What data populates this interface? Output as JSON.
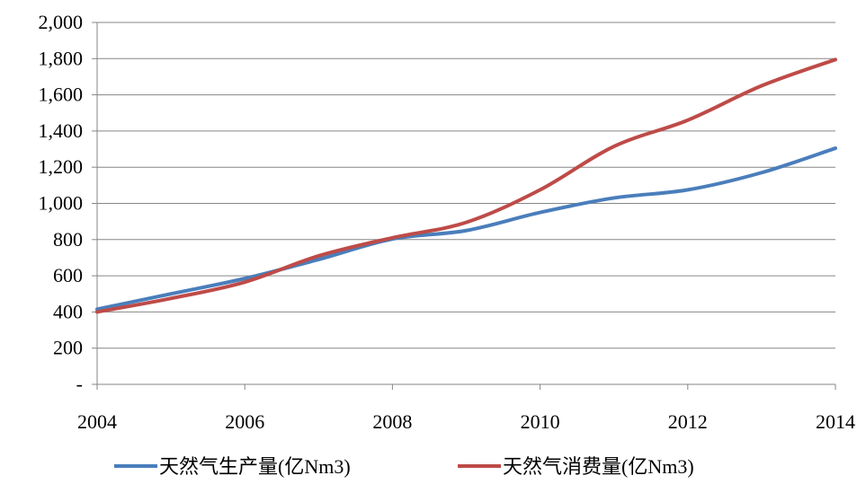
{
  "chart_data": {
    "type": "line",
    "x": [
      2004,
      2005,
      2006,
      2007,
      2008,
      2009,
      2010,
      2011,
      2012,
      2013,
      2014
    ],
    "x_ticks": [
      "2004",
      "2006",
      "2008",
      "2010",
      "2012",
      "2014"
    ],
    "y_ticks": [
      "-",
      "200",
      "400",
      "600",
      "800",
      "1,000",
      "1,200",
      "1,400",
      "1,600",
      "1,800",
      "2,000"
    ],
    "ylim": [
      0,
      2000
    ],
    "xlim": [
      2004,
      2014
    ],
    "grid": true,
    "legend_position": "bottom",
    "series": [
      {
        "name": "天然气生产量(亿Nm3)",
        "color": "#4A7EBB",
        "values": [
          415,
          500,
          585,
          690,
          803,
          850,
          950,
          1030,
          1075,
          1170,
          1305
        ]
      },
      {
        "name": "天然气消费量(亿Nm3)",
        "color": "#BE4B48",
        "values": [
          400,
          475,
          565,
          710,
          810,
          895,
          1075,
          1315,
          1460,
          1650,
          1795
        ]
      }
    ]
  }
}
